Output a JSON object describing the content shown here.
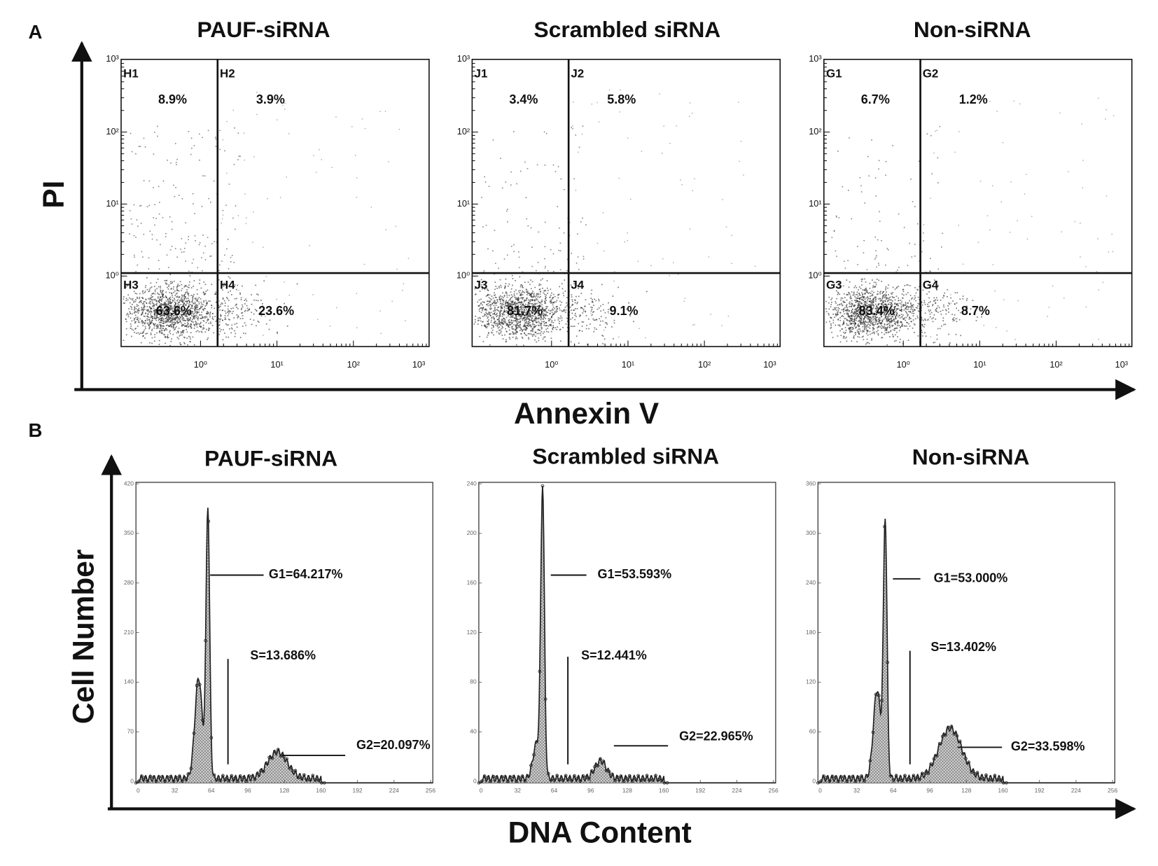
{
  "panel_a": {
    "label": "A",
    "y_axis": "PI",
    "x_axis": "Annexin V",
    "plots": [
      {
        "title": "PAUF-siRNA",
        "quadrants": [
          {
            "label": "H1",
            "percent": "8.9%"
          },
          {
            "label": "H2",
            "percent": "3.9%"
          },
          {
            "label": "H3",
            "percent": "63.6%"
          },
          {
            "label": "H4",
            "percent": "23.6%"
          }
        ],
        "yticks": [
          "10³",
          "10²",
          "10¹",
          "10⁰"
        ],
        "xticks": [
          "10⁰",
          "10¹",
          "10²",
          "10³"
        ]
      },
      {
        "title": "Scrambled siRNA",
        "quadrants": [
          {
            "label": "J1",
            "percent": "3.4%"
          },
          {
            "label": "J2",
            "percent": "5.8%"
          },
          {
            "label": "J3",
            "percent": "81.7%"
          },
          {
            "label": "J4",
            "percent": "9.1%"
          }
        ],
        "yticks": [
          "10³",
          "10²",
          "10¹",
          "10⁰"
        ],
        "xticks": [
          "10⁰",
          "10¹",
          "10²",
          "10³"
        ]
      },
      {
        "title": "Non-siRNA",
        "quadrants": [
          {
            "label": "G1",
            "percent": "6.7%"
          },
          {
            "label": "G2",
            "percent": "1.2%"
          },
          {
            "label": "G3",
            "percent": "83.4%"
          },
          {
            "label": "G4",
            "percent": "8.7%"
          }
        ],
        "yticks": [
          "10³",
          "10²",
          "10¹",
          "10⁰"
        ],
        "xticks": [
          "10⁰",
          "10¹",
          "10²",
          "10³"
        ]
      }
    ]
  },
  "panel_b": {
    "label": "B",
    "y_axis": "Cell Number",
    "x_axis": "DNA Content",
    "plots": [
      {
        "title": "PAUF-siRNA",
        "g1": "G1=64.217%",
        "s": "S=13.686%",
        "g2": "G2=20.097%",
        "yticks": [
          "420",
          "350",
          "280",
          "210",
          "140",
          "70",
          "0"
        ],
        "xticks": [
          "0",
          "32",
          "64",
          "96",
          "128",
          "160",
          "192",
          "224",
          "256"
        ]
      },
      {
        "title": "Scrambled siRNA",
        "g1": "G1=53.593%",
        "s": "S=12.441%",
        "g2": "G2=22.965%",
        "yticks": [
          "240",
          "200",
          "160",
          "120",
          "80",
          "40",
          "0"
        ],
        "xticks": [
          "0",
          "32",
          "64",
          "96",
          "128",
          "160",
          "192",
          "224",
          "256"
        ]
      },
      {
        "title": "Non-siRNA",
        "g1": "G1=53.000%",
        "s": "S=13.402%",
        "g2": "G2=33.598%",
        "yticks": [
          "360",
          "300",
          "240",
          "180",
          "120",
          "60",
          "0"
        ],
        "xticks": [
          "0",
          "32",
          "64",
          "96",
          "128",
          "160",
          "192",
          "224",
          "256"
        ]
      }
    ]
  }
}
